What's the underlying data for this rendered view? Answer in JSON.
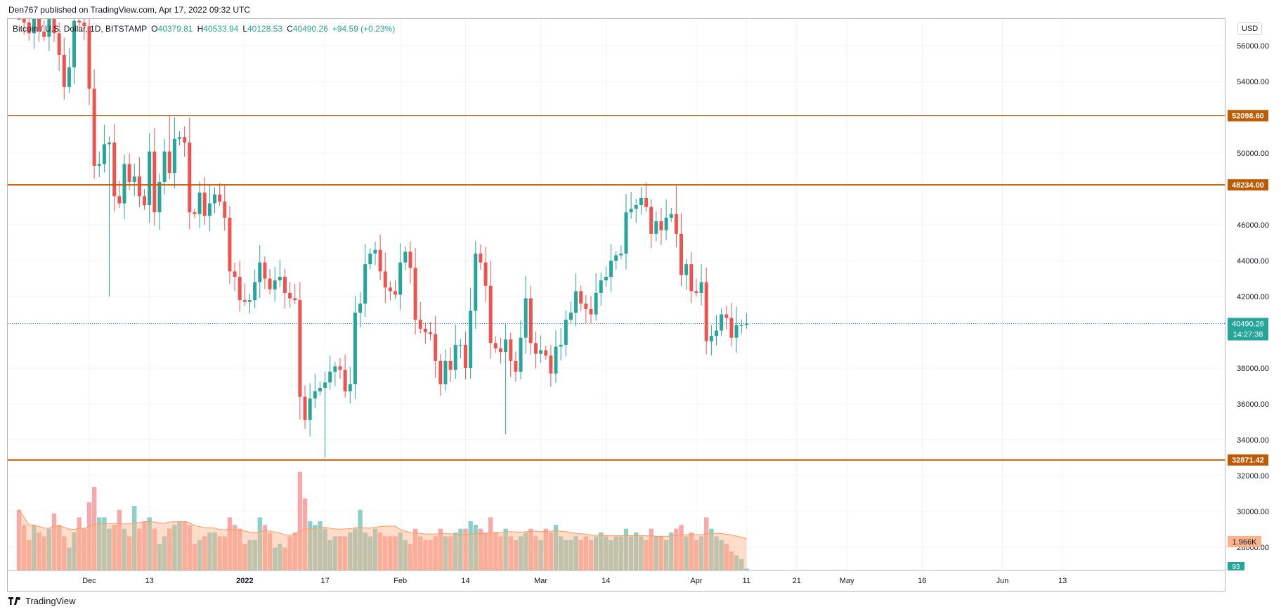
{
  "header": {
    "published": "Den767 published on TradingView.com, Apr 17, 2022 09:32 UTC"
  },
  "legend": {
    "symbol": "Bitcoin / U.S. Dollar, 1D, BITSTAMP",
    "o_label": "O",
    "o_value": "40379.81",
    "h_label": "H",
    "h_value": "40533.94",
    "l_label": "L",
    "l_value": "40128.53",
    "c_label": "C",
    "c_value": "40490.26",
    "change": "+94.59 (+0.23%)"
  },
  "currency_button": "USD",
  "footer": {
    "brand": "TradingView"
  },
  "colors": {
    "up": "#26a69a",
    "down": "#ef5350",
    "level": "#c05a00",
    "vol_up": "#7fcbc1",
    "vol_down": "#f5a09f",
    "vol_ma": "#ffb38a",
    "grid": "#f0f3fa",
    "axis_text": "#131722"
  },
  "chart_data": {
    "type": "candlestick",
    "title": "Bitcoin / U.S. Dollar, 1D, BITSTAMP",
    "ylim": [
      26700,
      57500
    ],
    "y_ticks": [
      56000,
      54000,
      50000,
      46000,
      44000,
      42000,
      38000,
      36000,
      34000,
      32000,
      30000,
      28000
    ],
    "x_ticks": [
      {
        "label": "Dec",
        "day": 0
      },
      {
        "label": "13",
        "day": 12
      },
      {
        "label": "2022",
        "day": 31
      },
      {
        "label": "17",
        "day": 47
      },
      {
        "label": "Feb",
        "day": 62
      },
      {
        "label": "14",
        "day": 75
      },
      {
        "label": "Mar",
        "day": 90
      },
      {
        "label": "14",
        "day": 103
      },
      {
        "label": "Apr",
        "day": 121
      },
      {
        "label": "11",
        "day": 131
      },
      {
        "label": "21",
        "day": 141
      },
      {
        "label": "May",
        "day": 151
      },
      {
        "label": "16",
        "day": 166
      },
      {
        "label": "Jun",
        "day": 182
      },
      {
        "label": "13",
        "day": 194
      }
    ],
    "levels": [
      {
        "price": 52098.6,
        "label": "52098.60"
      },
      {
        "price": 48234.0,
        "label": "48234.00"
      },
      {
        "price": 32871.42,
        "label": "32871.42"
      }
    ],
    "last_price": {
      "value": 40490.26,
      "label": "40490.26",
      "countdown": "14:27:38"
    },
    "volume_ma_label": "1.966K",
    "volume_last_label": "93",
    "start_day": -14,
    "closes": [
      57800,
      57300,
      56700,
      57600,
      56800,
      56500,
      57900,
      56700,
      55500,
      53700,
      54800,
      57400,
      57300,
      57100,
      53600,
      49300,
      49400,
      50500,
      50600,
      47600,
      47200,
      49400,
      48400,
      48700,
      47600,
      47100,
      50100,
      46700,
      48400,
      50100,
      48900,
      50800,
      50900,
      50600,
      46700,
      46600,
      47800,
      46500,
      47200,
      47700,
      47300,
      46400,
      43400,
      43100,
      41800,
      41700,
      41800,
      42800,
      43900,
      43000,
      42400,
      42900,
      43100,
      42200,
      41900,
      41800,
      36400,
      35100,
      36300,
      36700,
      36900,
      37200,
      37800,
      38100,
      37900,
      36700,
      37100,
      41100,
      41600,
      43800,
      44400,
      44600,
      43400,
      42500,
      42300,
      42100,
      43900,
      44500,
      43600,
      40700,
      40200,
      40000,
      39900,
      38400,
      37100,
      38400,
      37900,
      39300,
      39300,
      38000,
      41200,
      44400,
      43900,
      42600,
      39400,
      39100,
      38900,
      39600,
      38400,
      37800,
      39700,
      41900,
      39400,
      38800,
      39000,
      38700,
      37700,
      39200,
      39300,
      40700,
      41100,
      42300,
      41600,
      41300,
      41000,
      42200,
      42900,
      43100,
      44000,
      44300,
      44400,
      46700,
      46900,
      47100,
      47500,
      47000,
      45500,
      46200,
      45700,
      46400,
      46600,
      45500,
      43200,
      43800,
      42300,
      42200,
      42800,
      39500,
      39800,
      40100,
      41000,
      40800,
      39700,
      40400,
      40400,
      40490
    ],
    "volumes": [
      1.6,
      1.2,
      0.8,
      1.2,
      1.0,
      0.9,
      1.1,
      1.5,
      1.2,
      0.9,
      0.6,
      1.0,
      1.4,
      1.1,
      1.8,
      2.2,
      1.4,
      1.4,
      1.1,
      1.2,
      1.6,
      1.1,
      0.9,
      1.7,
      1.1,
      1.3,
      1.4,
      1.1,
      0.7,
      0.9,
      1.1,
      1.2,
      1.3,
      1.3,
      1.2,
      0.7,
      0.8,
      0.9,
      1.0,
      1.0,
      0.9,
      0.9,
      1.4,
      1.2,
      1.1,
      0.7,
      0.8,
      0.8,
      1.4,
      1.2,
      1.0,
      0.6,
      0.7,
      0.6,
      0.9,
      1.0,
      2.6,
      1.9,
      1.3,
      1.2,
      1.3,
      1.1,
      0.8,
      0.9,
      0.9,
      0.9,
      1.0,
      1.1,
      1.6,
      1.0,
      0.9,
      1.1,
      1.0,
      0.9,
      0.9,
      0.9,
      1.0,
      0.8,
      0.7,
      1.1,
      0.9,
      0.8,
      0.8,
      0.9,
      1.1,
      0.9,
      0.9,
      1.0,
      1.1,
      1.1,
      1.3,
      1.2,
      1.1,
      1.0,
      1.4,
      1.0,
      0.9,
      1.1,
      0.9,
      0.8,
      0.9,
      1.0,
      1.1,
      0.9,
      0.8,
      1.1,
      1.0,
      1.2,
      0.9,
      0.8,
      0.8,
      0.9,
      0.8,
      0.9,
      0.8,
      0.9,
      1.0,
      0.9,
      0.8,
      0.9,
      0.9,
      1.1,
      0.9,
      1.0,
      0.9,
      0.8,
      1.1,
      0.9,
      0.9,
      0.8,
      1.0,
      1.1,
      1.2,
      0.9,
      1.0,
      0.8,
      0.9,
      1.4,
      1.1,
      0.9,
      0.8,
      0.7,
      0.5,
      0.4,
      0.3,
      0.05
    ]
  }
}
